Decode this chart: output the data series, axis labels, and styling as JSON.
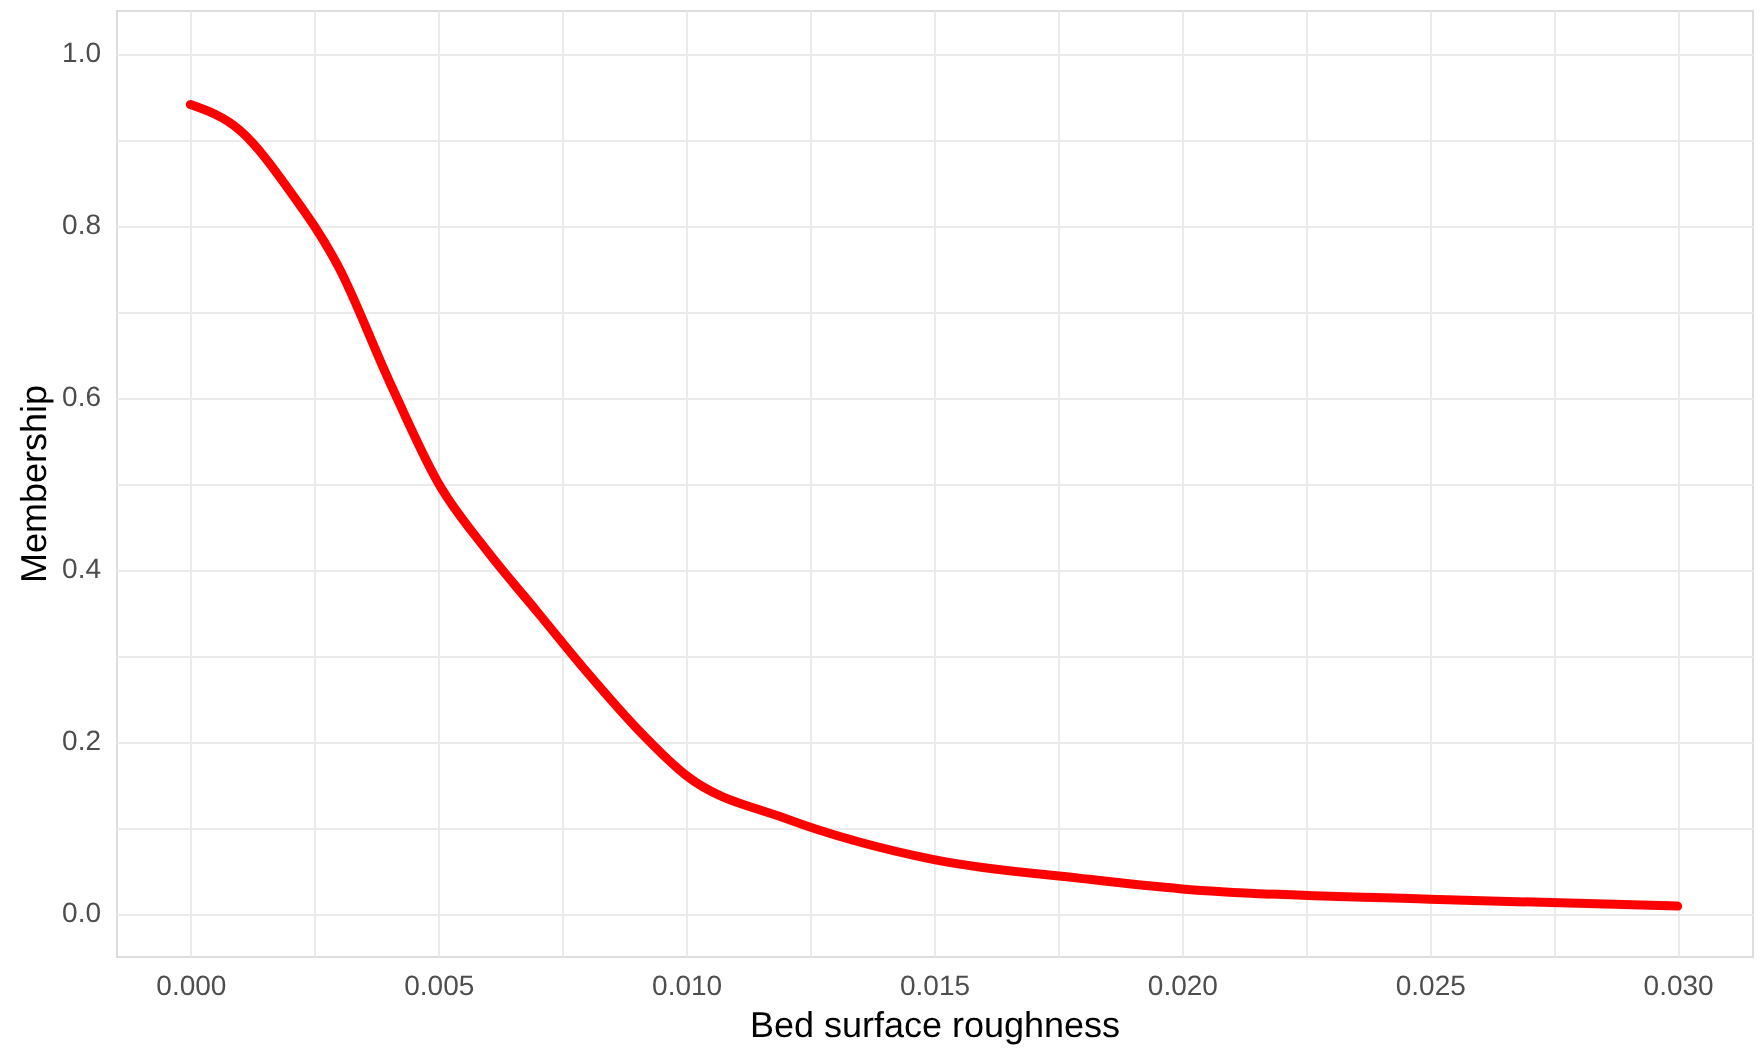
{
  "chart_data": {
    "type": "line",
    "xlabel": "Bed surface roughness",
    "ylabel": "Membership",
    "x": [
      0,
      0.001,
      0.002,
      0.003,
      0.004,
      0.005,
      0.006,
      0.007,
      0.008,
      0.009,
      0.01,
      0.012,
      0.015,
      0.018,
      0.02,
      0.025,
      0.03
    ],
    "series": [
      {
        "color": "#ff0000",
        "values": [
          0.94,
          0.91,
          0.84,
          0.75,
          0.62,
          0.5,
          0.42,
          0.35,
          0.28,
          0.215,
          0.16,
          0.11,
          0.062,
          0.04,
          0.028,
          0.016,
          0.008
        ]
      }
    ],
    "xlim": [
      -0.0015,
      0.0315
    ],
    "ylim": [
      -0.05,
      1.05
    ],
    "xticks": [
      {
        "value": 0,
        "label": "0.000"
      },
      {
        "value": 0.0025,
        "label": null
      },
      {
        "value": 0.005,
        "label": "0.005"
      },
      {
        "value": 0.0075,
        "label": null
      },
      {
        "value": 0.01,
        "label": "0.010"
      },
      {
        "value": 0.0125,
        "label": null
      },
      {
        "value": 0.015,
        "label": "0.015"
      },
      {
        "value": 0.0175,
        "label": null
      },
      {
        "value": 0.02,
        "label": "0.020"
      },
      {
        "value": 0.0225,
        "label": null
      },
      {
        "value": 0.025,
        "label": "0.025"
      },
      {
        "value": 0.0275,
        "label": null
      },
      {
        "value": 0.03,
        "label": "0.030"
      }
    ],
    "yticks": [
      {
        "value": 0,
        "label": "0.0"
      },
      {
        "value": 0.1,
        "label": null
      },
      {
        "value": 0.2,
        "label": "0.2"
      },
      {
        "value": 0.3,
        "label": null
      },
      {
        "value": 0.4,
        "label": "0.4"
      },
      {
        "value": 0.5,
        "label": null
      },
      {
        "value": 0.6,
        "label": "0.6"
      },
      {
        "value": 0.7,
        "label": null
      },
      {
        "value": 0.8,
        "label": "0.8"
      },
      {
        "value": 0.9,
        "label": null
      },
      {
        "value": 1.0,
        "label": "1.0"
      }
    ],
    "grid": true,
    "marker": "none",
    "line_style": "solid"
  }
}
